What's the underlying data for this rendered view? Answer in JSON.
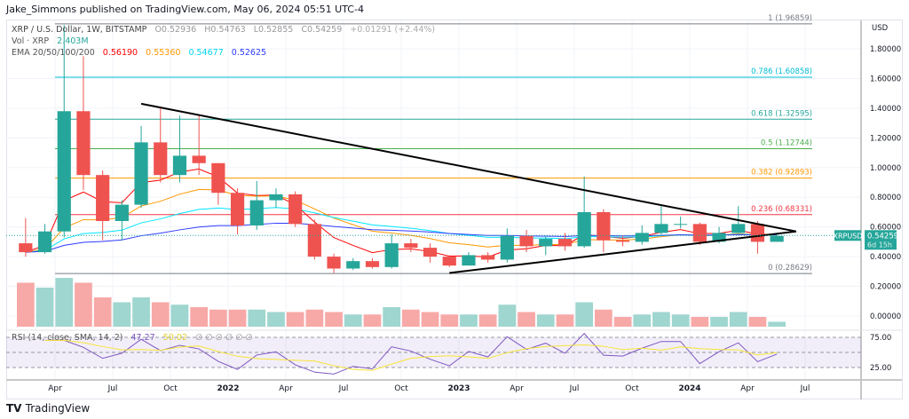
{
  "header": {
    "publisher": "Jake_Simmons published on TradingView.com, May 06, 2024 05:51 UTC-4"
  },
  "legend": {
    "symbol": "XRP / U.S. Dollar, 1W, BITSTAMP",
    "open": "O0.52936",
    "high": "H0.54763",
    "low": "L0.52855",
    "close": "C0.54259",
    "change": "+0.01291 (+2.44%)",
    "vol_label": "Vol · XRP",
    "vol_value": "2.403M",
    "ema_label": "EMA 20/50/100/200",
    "ema_values": [
      "0.56190",
      "0.55360",
      "0.54677",
      "0.52625"
    ],
    "rsi_label": "RSI (14, close, SMA, 14, 2)",
    "rsi_value": "47.27",
    "rsi_sma": "50.02",
    "rsi_na": "∅ ∅ ∅ ∅ ∅ ∅"
  },
  "footer": {
    "brand": "TradingView"
  },
  "price_tag": {
    "symbol": "XRPUSD",
    "price": "0.54259",
    "countdown": "6d 15h"
  },
  "colors": {
    "up": "#26a69a",
    "down": "#ef5350",
    "ema": [
      "#ff0000",
      "#ff9800",
      "#00e5ff",
      "#2e3bff"
    ],
    "rsi": "#7e57c2",
    "rsi_sma": "#f7e436"
  },
  "chart_data": {
    "type": "candlestick",
    "currency": "USD",
    "yticks": [
      "1.80000",
      "1.60000",
      "1.40000",
      "1.20000",
      "1.00000",
      "0.80000",
      "0.60000",
      "0.40000",
      "0.20000",
      "0.00000"
    ],
    "ylim": [
      0,
      2.0
    ],
    "rsi_ticks": [
      "75.00",
      "25.00"
    ],
    "xticks": [
      "Apr",
      "Jul",
      "Oct",
      "2022",
      "Apr",
      "Jul",
      "Oct",
      "2023",
      "Apr",
      "Jul",
      "Oct",
      "2024",
      "Apr",
      "Jul"
    ],
    "months": [
      "2021-02",
      "2021-03",
      "2021-04",
      "2021-05",
      "2021-06",
      "2021-07",
      "2021-08",
      "2021-09",
      "2021-10",
      "2021-11",
      "2021-12",
      "2022-01",
      "2022-02",
      "2022-03",
      "2022-04",
      "2022-05",
      "2022-06",
      "2022-07",
      "2022-08",
      "2022-09",
      "2022-10",
      "2022-11",
      "2022-12",
      "2023-01",
      "2023-02",
      "2023-03",
      "2023-04",
      "2023-05",
      "2023-06",
      "2023-07",
      "2023-08",
      "2023-09",
      "2023-10",
      "2023-11",
      "2023-12",
      "2024-01",
      "2024-02",
      "2024-03",
      "2024-04",
      "2024-05"
    ],
    "open": [
      0.49,
      0.43,
      0.57,
      1.38,
      0.95,
      0.64,
      0.75,
      1.17,
      0.95,
      1.08,
      1.03,
      0.83,
      0.61,
      0.78,
      0.82,
      0.62,
      0.4,
      0.32,
      0.37,
      0.33,
      0.49,
      0.46,
      0.4,
      0.34,
      0.41,
      0.38,
      0.54,
      0.47,
      0.52,
      0.47,
      0.7,
      0.51,
      0.5,
      0.56,
      0.62,
      0.62,
      0.5,
      0.56,
      0.62,
      0.5
    ],
    "high": [
      0.66,
      0.62,
      1.96,
      1.75,
      0.98,
      0.78,
      1.28,
      1.41,
      1.35,
      1.35,
      1.03,
      0.86,
      0.91,
      0.86,
      0.84,
      0.65,
      0.42,
      0.39,
      0.39,
      0.55,
      0.52,
      0.49,
      0.41,
      0.43,
      0.43,
      0.59,
      0.58,
      0.54,
      0.56,
      0.94,
      0.72,
      0.54,
      0.61,
      0.74,
      0.67,
      0.63,
      0.6,
      0.74,
      0.64,
      0.55
    ],
    "low": [
      0.4,
      0.42,
      0.53,
      0.85,
      0.51,
      0.51,
      0.73,
      0.9,
      0.9,
      0.95,
      0.75,
      0.55,
      0.58,
      0.73,
      0.6,
      0.38,
      0.29,
      0.31,
      0.32,
      0.32,
      0.43,
      0.36,
      0.33,
      0.34,
      0.36,
      0.36,
      0.43,
      0.41,
      0.44,
      0.46,
      0.43,
      0.47,
      0.48,
      0.55,
      0.59,
      0.48,
      0.49,
      0.56,
      0.42,
      0.5
    ],
    "close": [
      0.43,
      0.57,
      1.38,
      0.95,
      0.64,
      0.75,
      1.17,
      0.95,
      1.08,
      1.03,
      0.83,
      0.61,
      0.78,
      0.82,
      0.62,
      0.4,
      0.32,
      0.37,
      0.33,
      0.49,
      0.46,
      0.4,
      0.34,
      0.41,
      0.38,
      0.54,
      0.47,
      0.52,
      0.47,
      0.7,
      0.51,
      0.5,
      0.56,
      0.62,
      0.62,
      0.5,
      0.56,
      0.62,
      0.5,
      0.54
    ],
    "volume_rel": [
      0.9,
      0.8,
      1.0,
      0.9,
      0.6,
      0.5,
      0.6,
      0.5,
      0.45,
      0.4,
      0.35,
      0.35,
      0.35,
      0.3,
      0.3,
      0.35,
      0.3,
      0.25,
      0.25,
      0.4,
      0.35,
      0.3,
      0.25,
      0.25,
      0.25,
      0.45,
      0.3,
      0.25,
      0.25,
      0.5,
      0.35,
      0.2,
      0.25,
      0.3,
      0.25,
      0.2,
      0.2,
      0.3,
      0.2,
      0.1
    ],
    "fib_levels": [
      {
        "label": "1 (1.96859)",
        "price": 1.96859,
        "color": "#787b86"
      },
      {
        "label": "0.786 (1.60858)",
        "price": 1.60858,
        "color": "#00bcd4"
      },
      {
        "label": "0.618 (1.32595)",
        "price": 1.32595,
        "color": "#26a69a"
      },
      {
        "label": "0.5 (1.12744)",
        "price": 1.12744,
        "color": "#4caf50"
      },
      {
        "label": "0.382 (0.92893)",
        "price": 0.92893,
        "color": "#ff9800"
      },
      {
        "label": "0.236 (0.68331)",
        "price": 0.68331,
        "color": "#f23645"
      },
      {
        "label": "0 (0.28629)",
        "price": 0.28629,
        "color": "#787b86"
      }
    ],
    "trendlines": [
      {
        "from": [
          "2021-08",
          1.43
        ],
        "to": [
          "2024-06",
          0.57
        ]
      },
      {
        "from": [
          "2022-12",
          0.29
        ],
        "to": [
          "2024-06",
          0.57
        ]
      }
    ]
  }
}
